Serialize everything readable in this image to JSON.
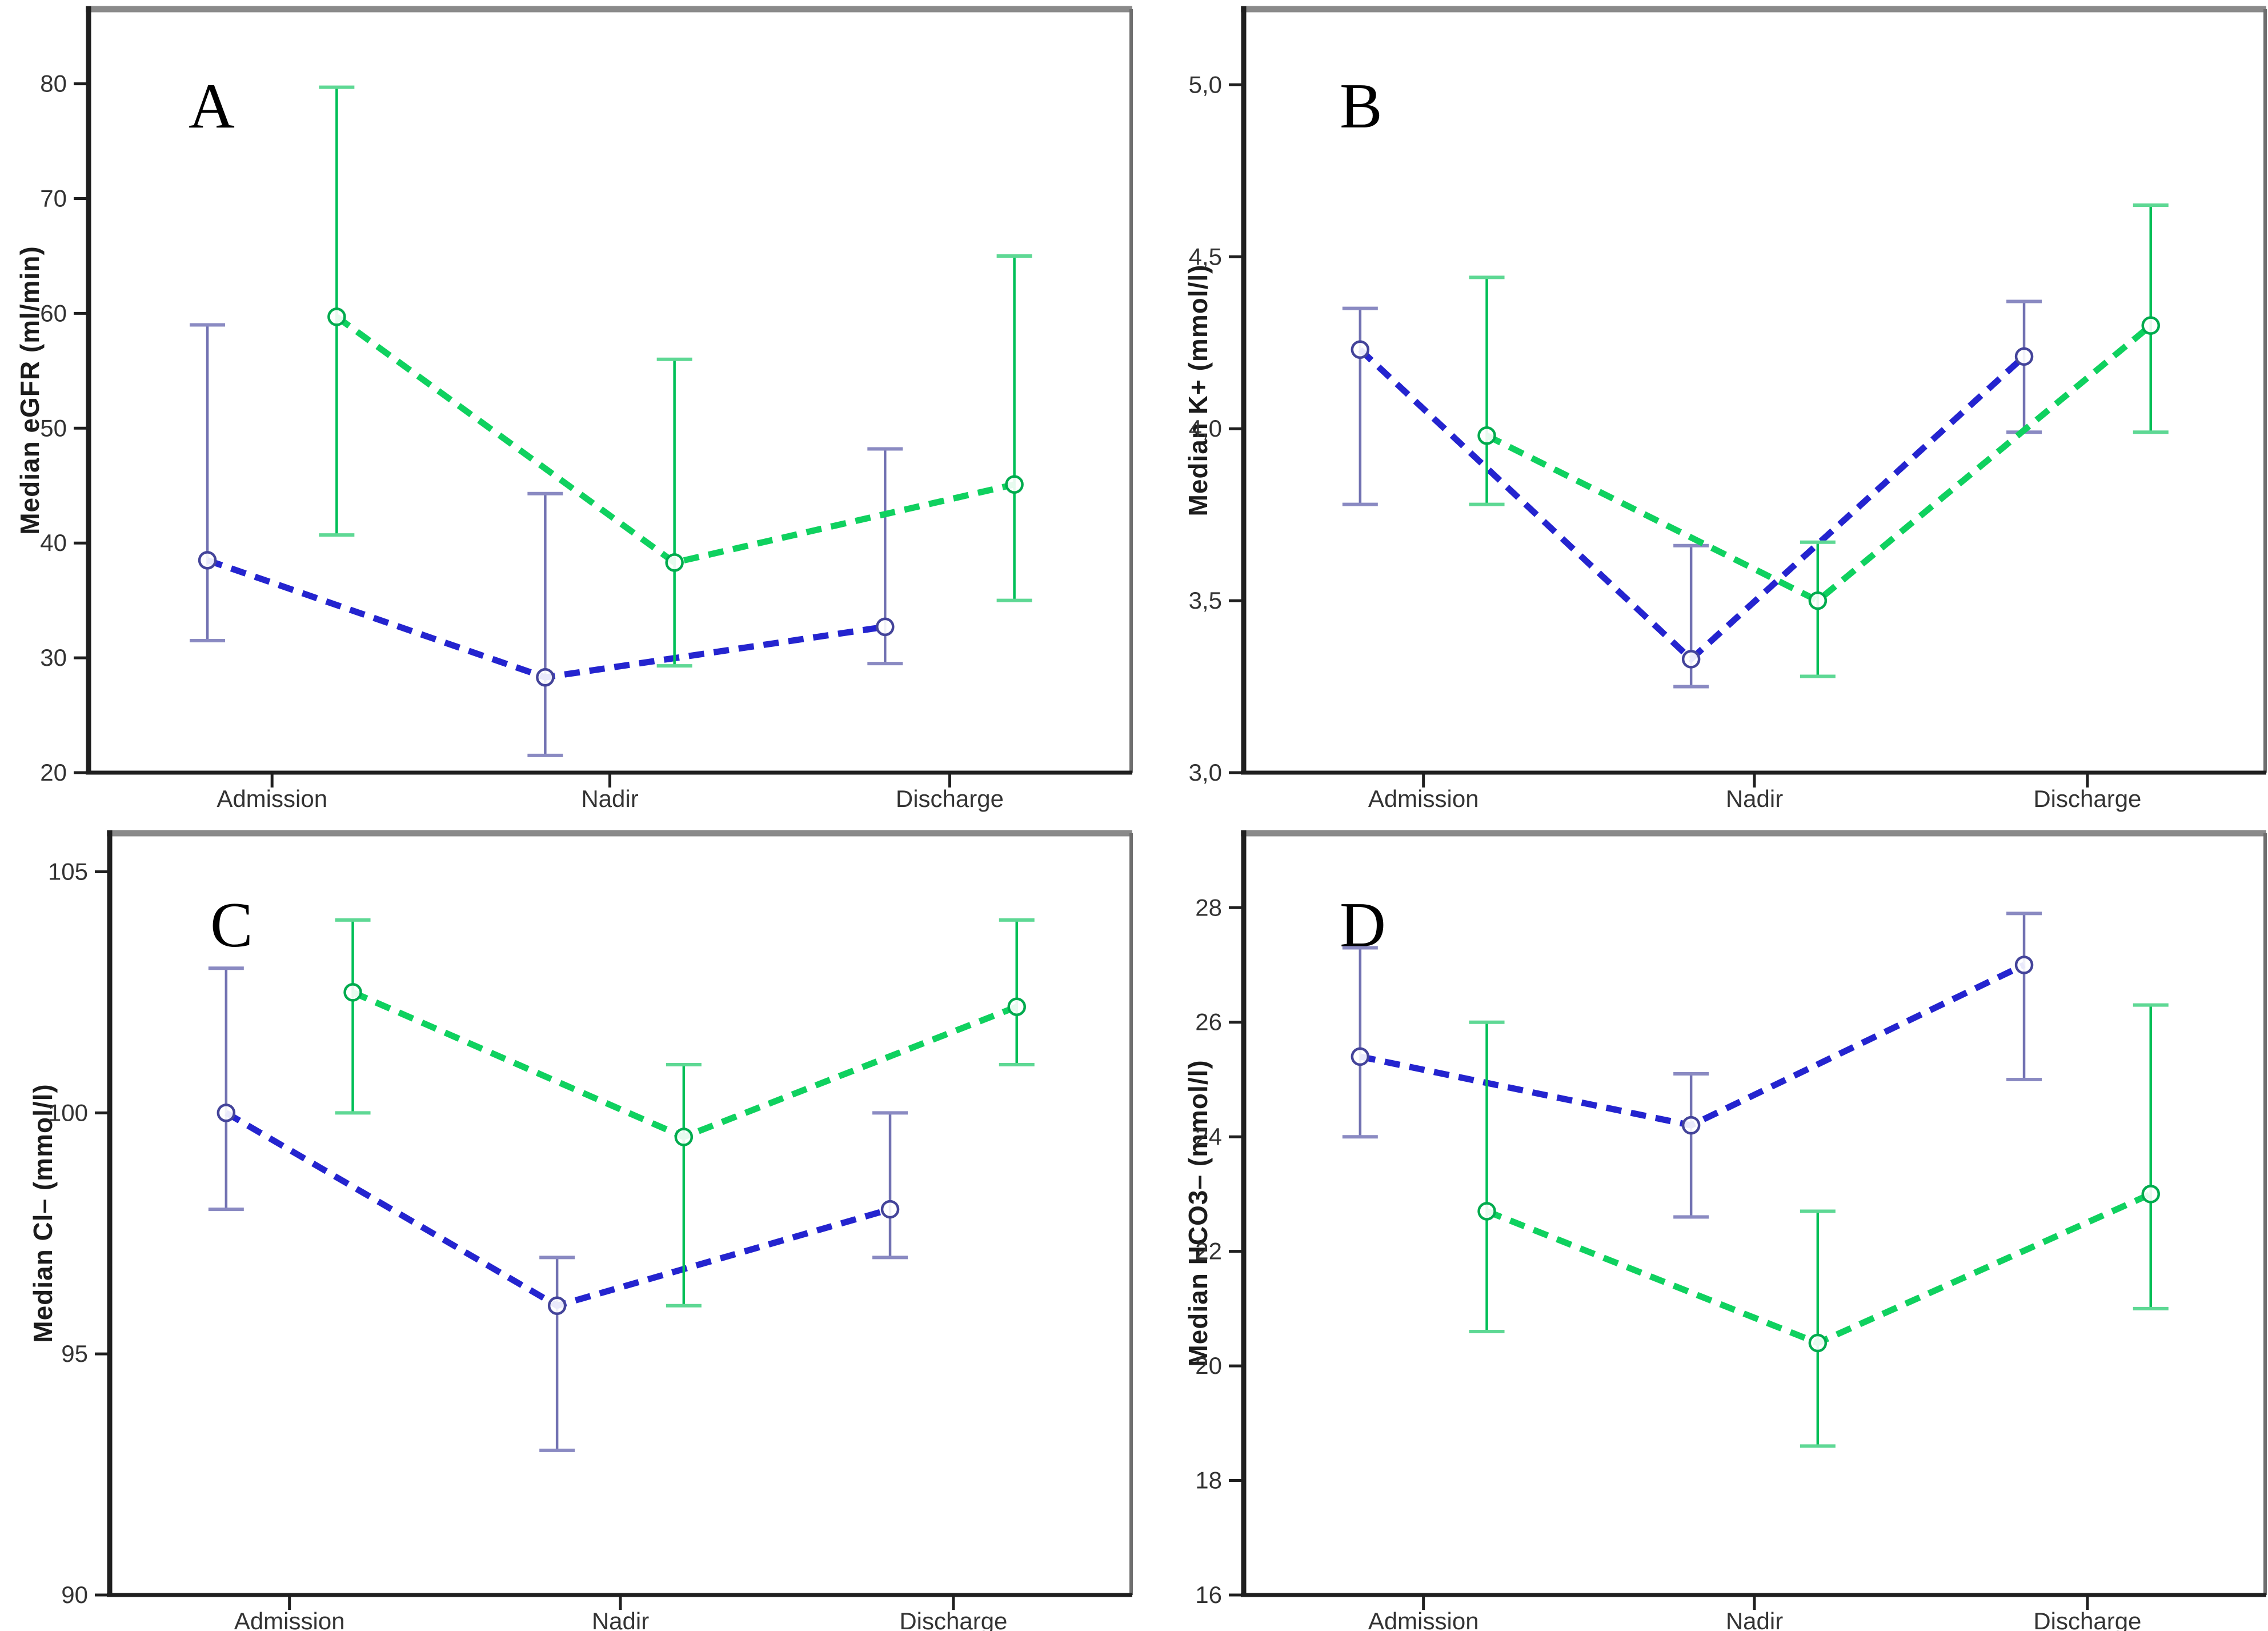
{
  "figure": {
    "background": "#ffffff",
    "x_axis_categories": [
      "Admission",
      "Nadir",
      "Discharge"
    ],
    "border_top_color": "#8a8a8a",
    "border_right_color": "#6e6e6e",
    "axis_color": "#1f1f1f",
    "tick_label_color": "#333333"
  },
  "chart_data": [
    {
      "type": "line",
      "panel_label": "A",
      "ylabel": "Median eGFR (ml/min)",
      "xlabel": "",
      "categories": [
        "Admission",
        "Nadir",
        "Discharge"
      ],
      "ylim": [
        20,
        86.5
      ],
      "ytick_values": [
        20,
        30,
        40,
        50,
        60,
        70,
        80
      ],
      "ytick_labels": [
        "20",
        "30",
        "40",
        "50",
        "60",
        "70",
        "80"
      ],
      "grid": false,
      "legend": "none",
      "series": [
        {
          "name": "blue-series",
          "line_color": "#2424cf",
          "errorbar_color": "#7272b2",
          "cap_color": "#8a8ac2",
          "marker_color": "#44449a",
          "dodge": -0.062,
          "values": [
            38.5,
            28.3,
            32.7
          ],
          "lower": [
            31.5,
            21.5,
            29.5
          ],
          "upper": [
            59.0,
            44.3,
            48.2
          ]
        },
        {
          "name": "green-series",
          "line_color": "#0fd15f",
          "errorbar_color": "#00bf58",
          "cap_color": "#5ed894",
          "marker_color": "#00ab4e",
          "dodge": 0.062,
          "values": [
            59.7,
            38.3,
            45.1
          ],
          "lower": [
            40.7,
            29.3,
            35.0
          ],
          "upper": [
            79.7,
            56.0,
            65.0
          ]
        }
      ]
    },
    {
      "type": "line",
      "panel_label": "B",
      "ylabel": "Median K+ (mmol/l)",
      "xlabel": "",
      "categories": [
        "Admission",
        "Nadir",
        "Discharge"
      ],
      "ylim": [
        3.0,
        5.22
      ],
      "ytick_values": [
        3.0,
        3.5,
        4.0,
        4.5,
        5.0
      ],
      "ytick_labels": [
        "3,0",
        "3,5",
        "4,0",
        "4,5",
        "5,0"
      ],
      "grid": false,
      "legend": "none",
      "series": [
        {
          "name": "blue-series",
          "line_color": "#2424cf",
          "errorbar_color": "#7272b2",
          "cap_color": "#8a8ac2",
          "marker_color": "#44449a",
          "dodge": -0.062,
          "values": [
            4.23,
            3.33,
            4.21
          ],
          "lower": [
            3.78,
            3.25,
            3.99
          ],
          "upper": [
            4.35,
            3.66,
            4.37
          ]
        },
        {
          "name": "green-series",
          "line_color": "#0fd15f",
          "errorbar_color": "#00bf58",
          "cap_color": "#5ed894",
          "marker_color": "#00ab4e",
          "dodge": 0.062,
          "values": [
            3.98,
            3.5,
            4.3
          ],
          "lower": [
            3.78,
            3.28,
            3.99
          ],
          "upper": [
            4.44,
            3.67,
            4.65
          ]
        }
      ]
    },
    {
      "type": "line",
      "panel_label": "C",
      "ylabel": "Median Cl– (mmol/l)",
      "xlabel": "",
      "categories": [
        "Admission",
        "Nadir",
        "Discharge"
      ],
      "ylim": [
        90,
        105.8
      ],
      "ytick_values": [
        90,
        95,
        100,
        105
      ],
      "ytick_labels": [
        "90",
        "95",
        "100",
        "105"
      ],
      "grid": false,
      "legend": "none",
      "series": [
        {
          "name": "blue-series",
          "line_color": "#2424cf",
          "errorbar_color": "#7272b2",
          "cap_color": "#8a8ac2",
          "marker_color": "#44449a",
          "dodge": -0.062,
          "values": [
            100.0,
            96.0,
            98.0
          ],
          "lower": [
            98.0,
            93.0,
            97.0
          ],
          "upper": [
            103.0,
            97.0,
            100.0
          ]
        },
        {
          "name": "green-series",
          "line_color": "#0fd15f",
          "errorbar_color": "#00bf58",
          "cap_color": "#5ed894",
          "marker_color": "#00ab4e",
          "dodge": 0.062,
          "values": [
            102.5,
            99.5,
            102.2
          ],
          "lower": [
            100.0,
            96.0,
            101.0
          ],
          "upper": [
            104.0,
            101.0,
            104.0
          ]
        }
      ]
    },
    {
      "type": "line",
      "panel_label": "D",
      "ylabel": "Median HCO3– (mmol/l)",
      "xlabel": "",
      "categories": [
        "Admission",
        "Nadir",
        "Discharge"
      ],
      "ylim": [
        16,
        29.3
      ],
      "ytick_values": [
        16,
        18,
        20,
        22,
        24,
        26,
        28
      ],
      "ytick_labels": [
        "16",
        "18",
        "20",
        "22",
        "24",
        "26",
        "28"
      ],
      "grid": false,
      "legend": "none",
      "series": [
        {
          "name": "blue-series",
          "line_color": "#2424cf",
          "errorbar_color": "#7272b2",
          "cap_color": "#8a8ac2",
          "marker_color": "#44449a",
          "dodge": -0.062,
          "values": [
            25.4,
            24.2,
            27.0
          ],
          "lower": [
            24.0,
            22.6,
            25.0
          ],
          "upper": [
            27.3,
            25.1,
            27.9
          ]
        },
        {
          "name": "green-series",
          "line_color": "#0fd15f",
          "errorbar_color": "#00bf58",
          "cap_color": "#5ed894",
          "marker_color": "#00ab4e",
          "dodge": 0.062,
          "values": [
            22.7,
            20.4,
            23.0
          ],
          "lower": [
            20.6,
            18.6,
            21.0
          ],
          "upper": [
            26.0,
            22.7,
            26.3
          ]
        }
      ]
    }
  ]
}
